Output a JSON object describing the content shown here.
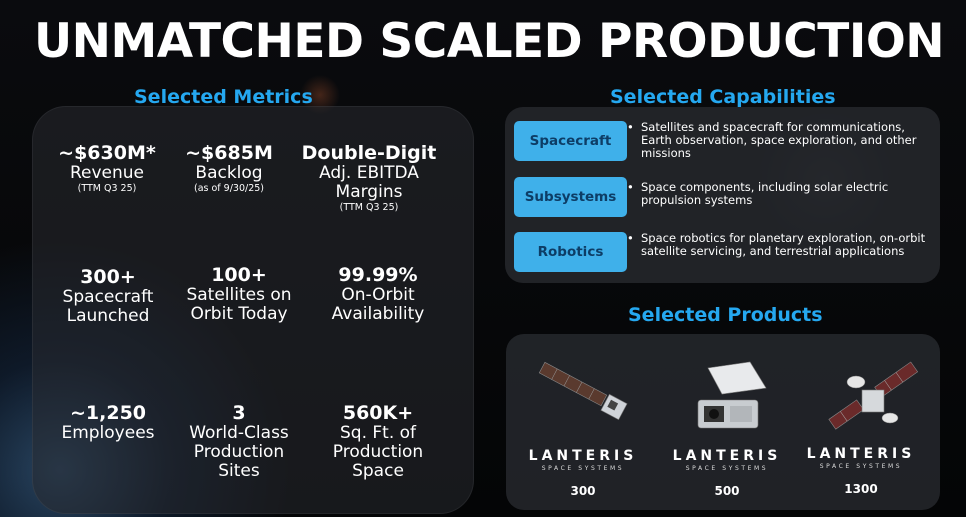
{
  "title": "UNMATCHED SCALED PRODUCTION",
  "metrics_heading": "Selected Metrics",
  "capabilities_heading": "Selected Capabilities",
  "products_heading": "Selected Products",
  "metrics": [
    {
      "value": "~$630M*",
      "label": "Revenue",
      "note": "(TTM Q3 25)"
    },
    {
      "value": "~$685M",
      "label": "Backlog",
      "note": "(as of 9/30/25)"
    },
    {
      "value": "Double-Digit",
      "label": "Adj. EBITDA Margins",
      "note": "(TTM Q3 25)"
    },
    {
      "value": "300+",
      "label": "Spacecraft Launched",
      "note": ""
    },
    {
      "value": "100+",
      "label": "Satellites on Orbit Today",
      "note": ""
    },
    {
      "value": "99.99%",
      "label": "On-Orbit Availability",
      "note": ""
    },
    {
      "value": "~1,250",
      "label": "Employees",
      "note": ""
    },
    {
      "value": "3",
      "label": "World-Class Production Sites",
      "note": ""
    },
    {
      "value": "560K+",
      "label": "Sq. Ft. of Production Space",
      "note": ""
    }
  ],
  "capabilities": [
    {
      "name": "Spacecraft",
      "description": "Satellites and spacecraft for communications, Earth observation, space exploration, and other missions"
    },
    {
      "name": "Subsystems",
      "description": "Space components, including solar electric propulsion systems"
    },
    {
      "name": "Robotics",
      "description": "Space robotics for planetary exploration, on-orbit satellite servicing, and terrestrial applications"
    }
  ],
  "bullet": "•",
  "products": [
    {
      "brand": "LANTERIS",
      "tagline": "SPACE SYSTEMS",
      "model": "300"
    },
    {
      "brand": "LANTERIS",
      "tagline": "SPACE SYSTEMS",
      "model": "500"
    },
    {
      "brand": "LANTERIS",
      "tagline": "SPACE SYSTEMS",
      "model": "1300"
    }
  ],
  "colors": {
    "accent": "#25a8f0",
    "button": "#3fb0ea",
    "button_text": "#0d3d66"
  }
}
